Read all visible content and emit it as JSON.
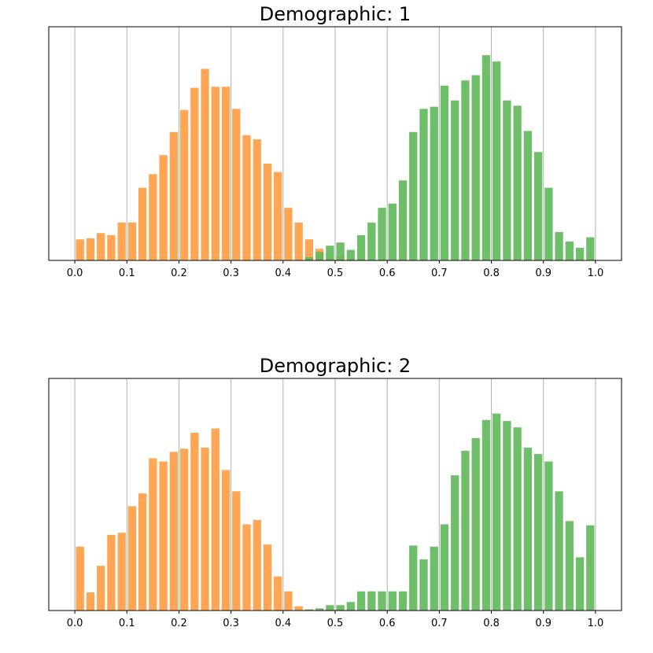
{
  "chart_data": [
    {
      "type": "bar",
      "title": "Demographic: 1",
      "xlabel": "",
      "ylabel": "",
      "xlim": [
        -0.05,
        1.05
      ],
      "ylim": [
        0,
        22.2
      ],
      "x_ticks": [
        "0.0",
        "0.1",
        "0.2",
        "0.3",
        "0.4",
        "0.5",
        "0.6",
        "0.7",
        "0.8",
        "0.9",
        "1.0"
      ],
      "grid": "x",
      "bin_width": 0.02,
      "series": [
        {
          "color": "#ff9c42",
          "x": [
            0.01,
            0.03,
            0.05,
            0.07,
            0.09,
            0.11,
            0.13,
            0.15,
            0.17,
            0.19,
            0.21,
            0.23,
            0.25,
            0.27,
            0.29,
            0.31,
            0.33,
            0.35,
            0.37,
            0.39,
            0.41,
            0.43,
            0.45,
            0.47,
            0.49,
            0.51,
            0.53,
            0.55,
            0.57
          ],
          "values": [
            2.0,
            2.1,
            2.6,
            2.4,
            3.6,
            3.6,
            6.9,
            8.2,
            10.0,
            12.2,
            14.3,
            16.4,
            18.2,
            16.5,
            16.5,
            14.4,
            11.9,
            11.5,
            9.2,
            8.4,
            5.0,
            3.6,
            2.0,
            1.1,
            0.2,
            0.4,
            0.1,
            0.1,
            0.0
          ]
        },
        {
          "color": "#5fb85a",
          "x": [
            0.45,
            0.47,
            0.49,
            0.51,
            0.53,
            0.55,
            0.57,
            0.59,
            0.61,
            0.63,
            0.65,
            0.67,
            0.69,
            0.71,
            0.73,
            0.75,
            0.77,
            0.79,
            0.81,
            0.83,
            0.85,
            0.87,
            0.89,
            0.91,
            0.93,
            0.95,
            0.97,
            0.99
          ],
          "values": [
            0.3,
            0.8,
            1.4,
            1.7,
            1.0,
            2.4,
            3.6,
            5.0,
            5.4,
            7.6,
            12.2,
            14.4,
            14.6,
            16.6,
            15.2,
            17.1,
            17.6,
            19.5,
            18.9,
            15.2,
            14.7,
            12.3,
            10.3,
            6.9,
            2.7,
            1.8,
            1.2,
            2.2
          ]
        }
      ]
    },
    {
      "type": "bar",
      "title": "Demographic: 2",
      "xlabel": "",
      "ylabel": "",
      "xlim": [
        -0.05,
        1.05
      ],
      "ylim": [
        0,
        21.8
      ],
      "x_ticks": [
        "0.0",
        "0.1",
        "0.2",
        "0.3",
        "0.4",
        "0.5",
        "0.6",
        "0.7",
        "0.8",
        "0.9",
        "1.0"
      ],
      "grid": "x",
      "bin_width": 0.02,
      "series": [
        {
          "color": "#ff9c42",
          "x": [
            0.01,
            0.03,
            0.05,
            0.07,
            0.09,
            0.11,
            0.13,
            0.15,
            0.17,
            0.19,
            0.21,
            0.23,
            0.25,
            0.27,
            0.29,
            0.31,
            0.33,
            0.35,
            0.37,
            0.39,
            0.41,
            0.43,
            0.45,
            0.47,
            0.49,
            0.51,
            0.53,
            0.55,
            0.57
          ],
          "values": [
            6.0,
            1.7,
            4.2,
            7.1,
            7.3,
            9.8,
            11.0,
            14.3,
            14.0,
            14.9,
            15.2,
            16.7,
            15.3,
            17.1,
            13.2,
            11.2,
            8.1,
            8.5,
            6.2,
            3.2,
            1.8,
            0.4,
            0.1,
            0.1,
            0.1,
            0.1,
            0.0,
            0.0,
            0.0
          ]
        },
        {
          "color": "#5fb85a",
          "x": [
            0.45,
            0.47,
            0.49,
            0.51,
            0.53,
            0.55,
            0.57,
            0.59,
            0.61,
            0.63,
            0.65,
            0.67,
            0.69,
            0.71,
            0.73,
            0.75,
            0.77,
            0.79,
            0.81,
            0.83,
            0.85,
            0.87,
            0.89,
            0.91,
            0.93,
            0.95,
            0.97,
            0.99
          ],
          "values": [
            0.1,
            0.2,
            0.5,
            0.5,
            0.8,
            1.8,
            1.8,
            1.8,
            1.8,
            1.8,
            6.1,
            4.8,
            6.0,
            8.1,
            12.7,
            15.0,
            16.2,
            17.9,
            18.5,
            17.8,
            17.2,
            15.3,
            14.7,
            14.0,
            11.2,
            8.4,
            5.0,
            8.0
          ]
        }
      ]
    }
  ]
}
